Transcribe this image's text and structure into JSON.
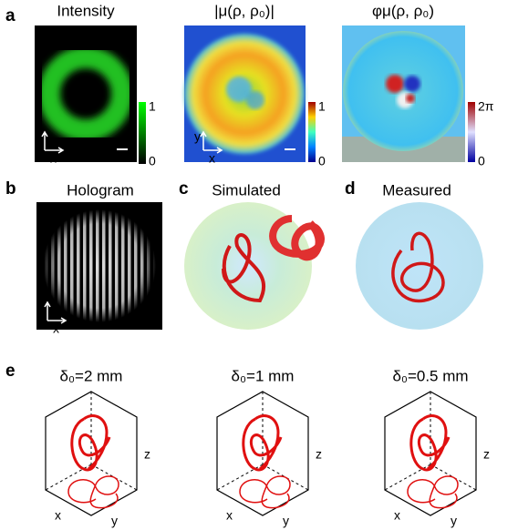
{
  "panel_a": {
    "label": "a",
    "plots": [
      {
        "title": "Intensity",
        "colorbar_top": "1",
        "colorbar_bottom": "0",
        "axis_y": "y",
        "axis_x": "x"
      },
      {
        "title": "|μ(ρ, ρ₀)|",
        "colorbar_top": "1",
        "colorbar_bottom": "0",
        "axis_y": "y",
        "axis_x": "x"
      },
      {
        "title": "φμ(ρ, ρ₀)",
        "colorbar_top": "2π",
        "colorbar_bottom": "0"
      }
    ]
  },
  "panel_b": {
    "label": "b",
    "title": "Hologram",
    "axis_y": "y",
    "axis_x": "x"
  },
  "panel_c": {
    "label": "c",
    "title": "Simulated"
  },
  "panel_d": {
    "label": "d",
    "title": "Measured"
  },
  "panel_e": {
    "label": "e",
    "plots": [
      {
        "title": "δ₀=2 mm",
        "axis_x": "x",
        "axis_y": "y",
        "axis_z": "z"
      },
      {
        "title": "δ₀=1 mm",
        "axis_x": "x",
        "axis_y": "y",
        "axis_z": "z"
      },
      {
        "title": "δ₀=0.5 mm",
        "axis_x": "x",
        "axis_y": "y",
        "axis_z": "z"
      }
    ]
  }
}
